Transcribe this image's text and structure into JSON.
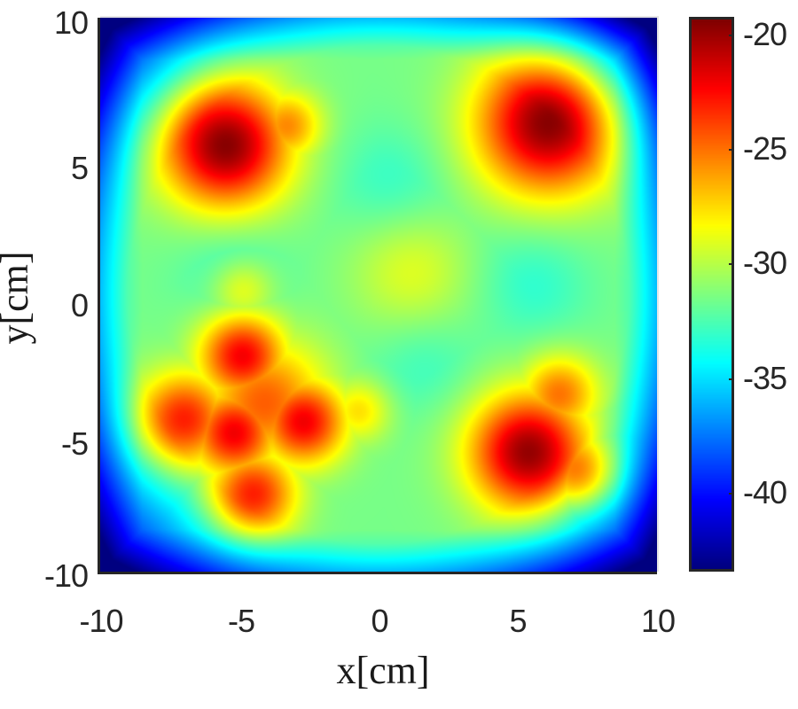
{
  "chart_data": {
    "type": "heatmap",
    "title": "",
    "xlabel": "x[cm]",
    "ylabel": "y[cm]",
    "xlim": [
      -10,
      10
    ],
    "ylim": [
      -10,
      10
    ],
    "xticks": [
      -10,
      -5,
      0,
      5,
      10
    ],
    "yticks": [
      -10,
      -5,
      0,
      5,
      10
    ],
    "xtick_labels": [
      "-10",
      "-5",
      "0",
      "5",
      "10"
    ],
    "ytick_labels": [
      "10",
      "5",
      "0",
      "-5",
      "-10"
    ],
    "colormap": "jet",
    "colorbar": {
      "range": [
        -43.3,
        -19.3
      ],
      "ticks": [
        -20,
        -25,
        -30,
        -35,
        -40
      ],
      "tick_labels": [
        "-20",
        "-25",
        "-30",
        "-35",
        "-40"
      ]
    },
    "background_level": -31.5,
    "edge_falloff": {
      "start_radius_cm": 9.0,
      "corner_value": -43.0
    },
    "peaks": [
      {
        "name": "top-left",
        "x": -5.5,
        "y": 5.4,
        "value": -19.5,
        "sigma": 1.6
      },
      {
        "name": "top-left-lobe",
        "x": -3.3,
        "y": 6.1,
        "value": -25.5,
        "sigma": 0.9
      },
      {
        "name": "top-right",
        "x": 6.1,
        "y": 6.2,
        "value": -19.5,
        "sigma": 1.8
      },
      {
        "name": "bottom-left-a",
        "x": -4.9,
        "y": -2.2,
        "value": -22.0,
        "sigma": 1.1
      },
      {
        "name": "bottom-left-b",
        "x": -5.2,
        "y": -5.0,
        "value": -22.0,
        "sigma": 1.1
      },
      {
        "name": "bottom-left-c",
        "x": -2.7,
        "y": -4.6,
        "value": -22.0,
        "sigma": 1.1
      },
      {
        "name": "bottom-left-d",
        "x": -7.0,
        "y": -4.5,
        "value": -23.0,
        "sigma": 1.2
      },
      {
        "name": "bottom-left-e",
        "x": -4.5,
        "y": -7.2,
        "value": -23.0,
        "sigma": 1.1
      },
      {
        "name": "bottom-left-f",
        "x": -4.1,
        "y": -3.9,
        "value": -24.5,
        "sigma": 1.6
      },
      {
        "name": "bottom-left-spike-up",
        "x": -4.9,
        "y": 0.2,
        "value": -28.0,
        "sigma": 0.8
      },
      {
        "name": "bottom-left-spike-right",
        "x": -0.7,
        "y": -4.2,
        "value": -27.5,
        "sigma": 0.8
      },
      {
        "name": "bottom-right",
        "x": 5.4,
        "y": -5.7,
        "value": -19.8,
        "sigma": 1.5
      },
      {
        "name": "bottom-right-lobe",
        "x": 6.5,
        "y": -3.6,
        "value": -25.0,
        "sigma": 1.0
      },
      {
        "name": "bottom-right-lobe-2",
        "x": 7.2,
        "y": -6.4,
        "value": -24.5,
        "sigma": 1.0
      },
      {
        "name": "center-ridge",
        "x": 1.2,
        "y": 0.8,
        "value": -29.0,
        "sigma": 1.5
      }
    ],
    "troughs": [
      {
        "x": 0.4,
        "y": 4.1,
        "value": -33.0,
        "sigma": 1.4
      },
      {
        "x": -5.3,
        "y": 0.9,
        "value": -32.8,
        "sigma": 1.4
      },
      {
        "x": 5.6,
        "y": 0.4,
        "value": -33.2,
        "sigma": 1.4
      },
      {
        "x": 1.6,
        "y": -2.5,
        "value": -32.8,
        "sigma": 1.3
      }
    ]
  }
}
